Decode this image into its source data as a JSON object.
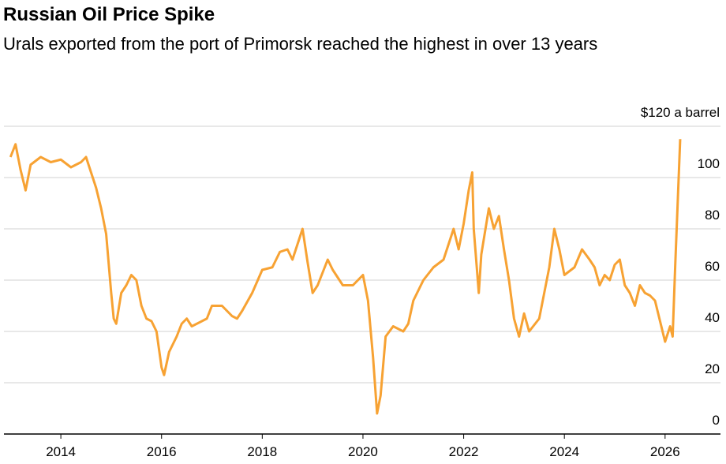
{
  "chart_data": {
    "type": "line",
    "title": "Russian Oil Price Spike",
    "subtitle": "Urals exported from the port of Primorsk reached the highest in over 13 years",
    "xlim": [
      2012.87,
      2027.1
    ],
    "xticks": [
      2014,
      2016,
      2018,
      2020,
      2022,
      2024,
      2026
    ],
    "ylim": [
      0,
      120
    ],
    "yticks": [
      0,
      20,
      40,
      60,
      80,
      100,
      {
        "value": 120,
        "label": "$120 a barrel"
      }
    ],
    "grid": true,
    "x": [
      2013.0,
      2013.1,
      2013.2,
      2013.3,
      2013.4,
      2013.6,
      2013.8,
      2014.0,
      2014.2,
      2014.4,
      2014.5,
      2014.6,
      2014.7,
      2014.8,
      2014.9,
      2015.0,
      2015.05,
      2015.1,
      2015.2,
      2015.3,
      2015.4,
      2015.5,
      2015.6,
      2015.7,
      2015.8,
      2015.9,
      2016.0,
      2016.05,
      2016.15,
      2016.3,
      2016.4,
      2016.5,
      2016.6,
      2016.8,
      2016.9,
      2017.0,
      2017.2,
      2017.4,
      2017.5,
      2017.6,
      2017.8,
      2018.0,
      2018.2,
      2018.35,
      2018.5,
      2018.6,
      2018.8,
      2018.9,
      2019.0,
      2019.1,
      2019.3,
      2019.4,
      2019.6,
      2019.8,
      2019.9,
      2020.0,
      2020.1,
      2020.2,
      2020.28,
      2020.35,
      2020.45,
      2020.6,
      2020.8,
      2020.9,
      2021.0,
      2021.2,
      2021.4,
      2021.6,
      2021.8,
      2021.9,
      2022.0,
      2022.1,
      2022.17,
      2022.2,
      2022.3,
      2022.35,
      2022.5,
      2022.6,
      2022.7,
      2022.8,
      2022.9,
      2023.0,
      2023.1,
      2023.2,
      2023.3,
      2023.5,
      2023.6,
      2023.7,
      2023.8,
      2023.9,
      2024.0,
      2024.2,
      2024.35,
      2024.5,
      2024.6,
      2024.7,
      2024.8,
      2024.9,
      2025.0,
      2025.1,
      2025.2,
      2025.3,
      2025.4,
      2025.5,
      2025.6,
      2025.7,
      2025.8,
      2025.9,
      2026.0,
      2026.1,
      2026.15,
      2026.2,
      2026.25,
      2026.3
    ],
    "series": [
      {
        "color": "#f7a233",
        "values": [
          108,
          113,
          103,
          95,
          105,
          108,
          106,
          107,
          104,
          106,
          108,
          102,
          96,
          88,
          78,
          55,
          45,
          43,
          55,
          58,
          62,
          60,
          50,
          45,
          44,
          40,
          26,
          23,
          32,
          38,
          43,
          45,
          42,
          44,
          45,
          50,
          50,
          46,
          45,
          48,
          55,
          64,
          65,
          71,
          72,
          68,
          80,
          67,
          55,
          58,
          68,
          64,
          58,
          58,
          60,
          62,
          52,
          30,
          8,
          15,
          38,
          42,
          40,
          43,
          52,
          60,
          65,
          68,
          80,
          72,
          82,
          95,
          102,
          80,
          55,
          70,
          88,
          80,
          85,
          72,
          60,
          45,
          38,
          47,
          40,
          45,
          55,
          65,
          80,
          72,
          62,
          65,
          72,
          68,
          65,
          58,
          62,
          60,
          66,
          68,
          58,
          55,
          50,
          58,
          55,
          54,
          52,
          44,
          36,
          42,
          38,
          65,
          90,
          115
        ]
      }
    ]
  }
}
